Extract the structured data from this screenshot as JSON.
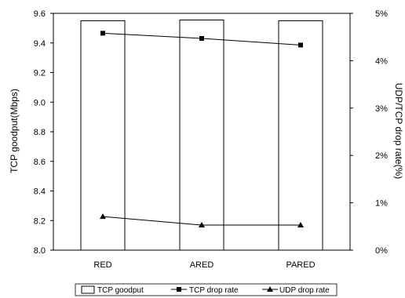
{
  "chart_data": {
    "type": "bar",
    "categories": [
      "RED",
      "ARED",
      "PARED"
    ],
    "series": [
      {
        "name": "TCP goodput",
        "kind": "bar",
        "axis": "left",
        "values": [
          9.55,
          9.555,
          9.55
        ]
      },
      {
        "name": "TCP drop rate",
        "kind": "line",
        "axis": "right",
        "marker": "square",
        "values": [
          4.58,
          4.47,
          4.33
        ]
      },
      {
        "name": "UDP drop rate",
        "kind": "line",
        "axis": "right",
        "marker": "triangle",
        "values": [
          0.71,
          0.53,
          0.53
        ]
      }
    ],
    "ylabel": "TCP goodput(Mbps)",
    "y2label": "UDP/TCP drop rate(%)",
    "ylim": [
      8.0,
      9.6
    ],
    "y2lim": [
      0,
      5
    ],
    "yticks": [
      "8.0",
      "8.2",
      "8.4",
      "8.6",
      "8.8",
      "9.0",
      "9.2",
      "9.4",
      "9.6"
    ],
    "y2ticks": [
      "0%",
      "1%",
      "2%",
      "3%",
      "4%",
      "5%"
    ],
    "legend_position": "bottom",
    "grid": false,
    "colors": {
      "bar_fill": "#ffffff",
      "stroke": "#000000"
    }
  }
}
